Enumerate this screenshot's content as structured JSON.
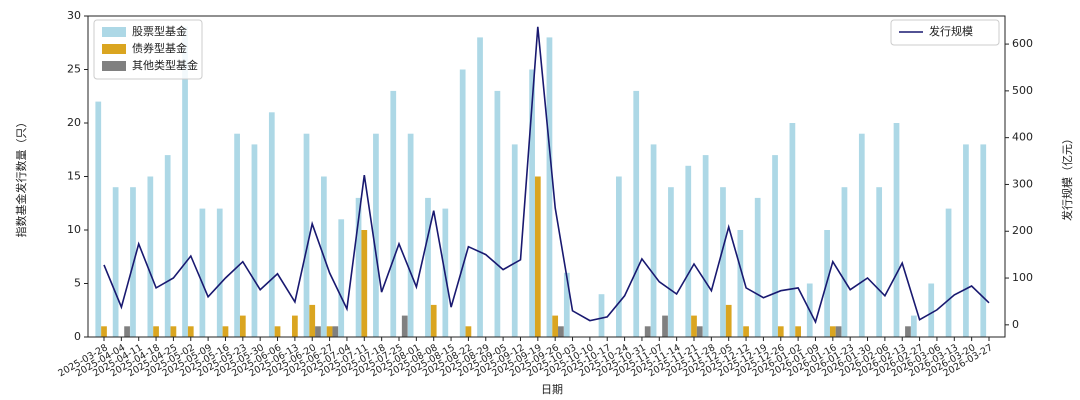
{
  "chart_data": {
    "type": "bar_line",
    "xlabel": "日期",
    "ylabel": "指数基金发行数量（只）",
    "y2label": "发行规模（亿元）",
    "categories": [
      "2025-03-28",
      "2025-04-04",
      "2025-04-11",
      "2025-04-18",
      "2025-04-25",
      "2025-05-02",
      "2025-05-09",
      "2025-05-16",
      "2025-05-23",
      "2025-05-30",
      "2025-06-06",
      "2025-06-13",
      "2025-06-20",
      "2025-06-27",
      "2025-07-04",
      "2025-07-11",
      "2025-07-18",
      "2025-07-25",
      "2025-08-01",
      "2025-08-08",
      "2025-08-15",
      "2025-08-22",
      "2025-08-29",
      "2025-09-05",
      "2025-09-12",
      "2025-09-19",
      "2025-09-26",
      "2025-10-03",
      "2025-10-10",
      "2025-10-17",
      "2025-10-24",
      "2025-10-31",
      "2025-11-07",
      "2025-11-14",
      "2025-11-21",
      "2025-11-28",
      "2025-12-05",
      "2025-12-12",
      "2025-12-19",
      "2025-12-26",
      "2026-01-02",
      "2026-01-09",
      "2026-01-16",
      "2026-01-23",
      "2026-01-30",
      "2026-02-06",
      "2026-02-13",
      "2026-02-27",
      "2026-03-06",
      "2026-03-13",
      "2026-03-20",
      "2026-03-27"
    ],
    "series": [
      {
        "name": "股票型基金",
        "color": "#add8e6",
        "values": [
          22,
          14,
          14,
          15,
          17,
          29,
          12,
          12,
          19,
          18,
          21,
          0,
          19,
          15,
          11,
          13,
          19,
          23,
          19,
          13,
          12,
          25,
          28,
          23,
          18,
          25,
          28,
          6,
          0,
          4,
          15,
          23,
          18,
          14,
          16,
          17,
          14,
          10,
          13,
          17,
          20,
          5,
          10,
          14,
          19,
          14,
          20,
          2,
          5,
          12,
          18,
          18
        ]
      },
      {
        "name": "债券型基金",
        "color": "#daa520",
        "values": [
          1,
          0,
          0,
          1,
          1,
          1,
          0,
          1,
          2,
          0,
          1,
          2,
          3,
          1,
          0,
          10,
          0,
          0,
          0,
          3,
          0,
          1,
          0,
          0,
          0,
          15,
          2,
          0,
          0,
          0,
          0,
          0,
          0,
          0,
          2,
          0,
          3,
          1,
          0,
          1,
          1,
          0,
          1,
          0,
          0,
          0,
          0,
          0,
          0,
          0,
          0,
          0
        ]
      },
      {
        "name": "其他类型基金",
        "color": "#808080",
        "values": [
          0,
          1,
          0,
          0,
          0,
          0,
          0,
          0,
          0,
          0,
          0,
          0,
          1,
          1,
          0,
          0,
          0,
          2,
          0,
          0,
          0,
          0,
          0,
          0,
          0,
          0,
          1,
          0,
          0,
          0,
          0,
          1,
          2,
          0,
          1,
          0,
          0,
          0,
          0,
          0,
          0,
          0,
          1,
          0,
          0,
          0,
          1,
          0,
          0,
          0,
          0,
          0
        ]
      },
      {
        "name": "发行规模",
        "color": "#191970",
        "axis": "y2",
        "values": [
          128,
          38,
          173,
          79,
          100,
          147,
          60,
          100,
          135,
          75,
          109,
          49,
          216,
          111,
          34,
          320,
          70,
          173,
          81,
          244,
          38,
          167,
          150,
          118,
          139,
          637,
          250,
          30,
          9,
          17,
          62,
          141,
          92,
          66,
          130,
          73,
          209,
          79,
          58,
          73,
          79,
          6,
          135,
          75,
          100,
          62,
          132,
          11,
          32,
          64,
          83,
          47
        ]
      }
    ],
    "ylim": [
      0,
      30
    ],
    "yticks": [
      0,
      5,
      10,
      15,
      20,
      25,
      30
    ],
    "y2lim": [
      -26,
      660
    ],
    "y2ticks": [
      0,
      100,
      200,
      300,
      400,
      500,
      600
    ],
    "legend_loc": "upper left",
    "legend2_loc": "upper right"
  }
}
